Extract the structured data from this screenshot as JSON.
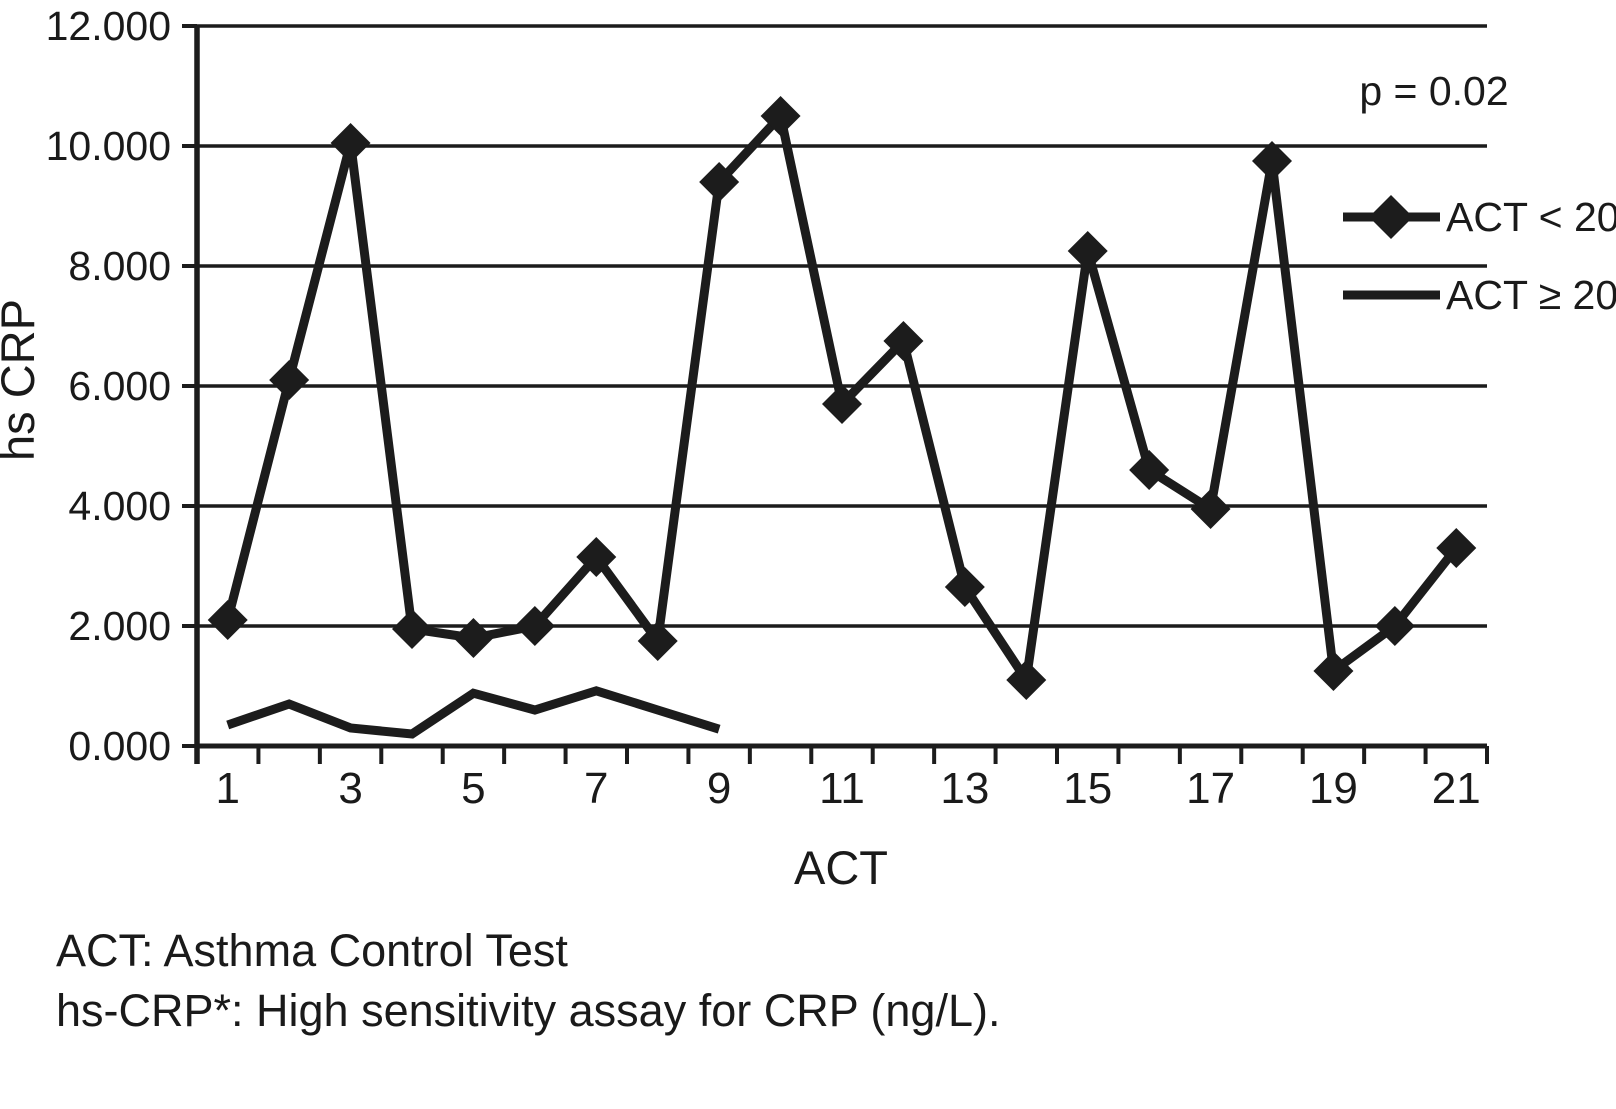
{
  "chart_data": {
    "type": "line",
    "x": [
      1,
      2,
      3,
      4,
      5,
      6,
      7,
      8,
      9,
      10,
      11,
      12,
      13,
      14,
      15,
      16,
      17,
      18,
      19,
      20,
      21
    ],
    "series": [
      {
        "name": "ACT < 20",
        "marker": "diamond",
        "values": [
          2.1,
          6.1,
          10.05,
          1.95,
          1.8,
          2.0,
          3.15,
          1.75,
          9.4,
          10.5,
          5.7,
          6.75,
          2.65,
          1.1,
          8.25,
          4.6,
          3.95,
          9.75,
          1.25,
          2.0,
          3.3
        ]
      },
      {
        "name": "ACT ≥ 20",
        "marker": "none",
        "values": [
          0.35,
          0.7,
          0.3,
          0.2,
          0.88,
          0.6,
          0.92,
          0.6,
          0.28,
          null,
          null,
          null,
          null,
          null,
          null,
          null,
          null,
          null,
          null,
          null,
          null
        ]
      }
    ],
    "xlabel": "ACT",
    "ylabel": "hs CRP",
    "ylim": [
      0,
      12
    ],
    "ytick_step": 2,
    "ytick_labels": [
      "0.000",
      "2.000",
      "4.000",
      "6.000",
      "8.000",
      "10.000",
      "12.000"
    ],
    "xtick_labels": [
      "1",
      "3",
      "5",
      "7",
      "9",
      "11",
      "13",
      "15",
      "17",
      "19",
      "21"
    ],
    "annotation": "p = 0.02",
    "grid": true,
    "legend_position": "right-top"
  },
  "footnotes": [
    "ACT: Asthma Control Test",
    "hs-CRP*: High sensitivity assay for CRP (ng/L)."
  ],
  "colors": {
    "line": "#1c1c1c",
    "text": "#1a1a1a",
    "background": "#ffffff"
  }
}
